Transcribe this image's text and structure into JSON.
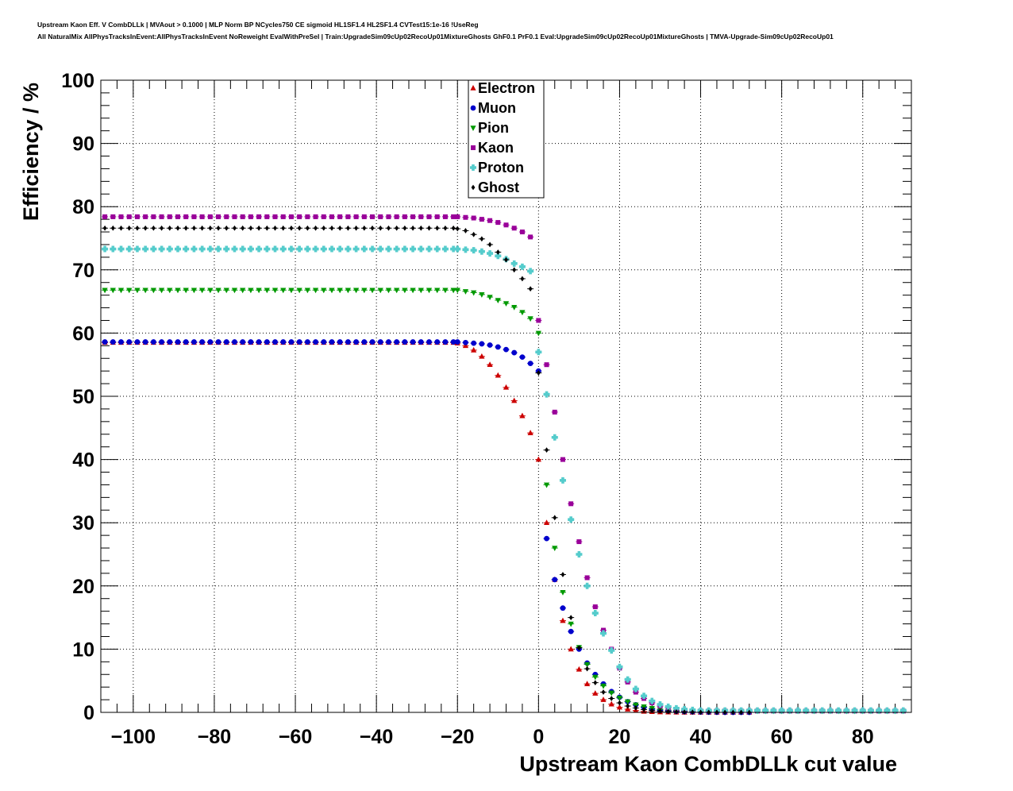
{
  "title_lines": [
    "Upstream Kaon Eff. V CombDLLk | MVAout > 0.1000 | MLP Norm BP NCycles750 CE sigmoid HL1SF1.4 HL2SF1.4 CVTest15:1e-16 !UseReg",
    "All NaturalMix AllPhysTracksInEvent:AllPhysTracksInEvent NoReweight EvalWithPreSel | Train:UpgradeSim09cUp02RecoUp01MixtureGhosts GhF0.1 PrF0.1 Eval:UpgradeSim09cUp02RecoUp01MixtureGhosts | TMVA-Upgrade-Sim09cUp02RecoUp01"
  ],
  "chart_data": {
    "type": "scatter",
    "title": "Upstream Kaon Eff. V CombDLLk",
    "xlabel": "Upstream Kaon CombDLLk cut value",
    "ylabel": "Efficiency / %",
    "xlim": [
      -108,
      92
    ],
    "ylim": [
      0,
      100
    ],
    "x_ticks": [
      -100,
      -80,
      -60,
      -40,
      -20,
      0,
      20,
      40,
      60,
      80
    ],
    "x_tick_labels": [
      "−100",
      "−80",
      "−60",
      "−40",
      "−20",
      "0",
      "20",
      "40",
      "60",
      "80"
    ],
    "y_ticks": [
      0,
      10,
      20,
      30,
      40,
      50,
      60,
      70,
      80,
      90,
      100
    ],
    "y_tick_labels": [
      "0",
      "10",
      "20",
      "30",
      "40",
      "50",
      "60",
      "70",
      "80",
      "90",
      "100"
    ],
    "grid": true,
    "legend_position": "top-center",
    "x_start": -107,
    "x_step": 2,
    "series": [
      {
        "name": "Electron",
        "color": "#cc0000",
        "marker": "triangle-up",
        "plateau": 58.5,
        "max_x": 52,
        "points": [
          [
            -20,
            58.4
          ],
          [
            -18,
            58.0
          ],
          [
            -16,
            57.3
          ],
          [
            -14,
            56.3
          ],
          [
            -12,
            55.0
          ],
          [
            -10,
            53.3
          ],
          [
            -8,
            51.4
          ],
          [
            -6,
            49.3
          ],
          [
            -4,
            46.9
          ],
          [
            -2,
            44.2
          ],
          [
            0,
            40.0
          ],
          [
            2,
            30.0
          ],
          [
            4,
            21.0
          ],
          [
            6,
            14.5
          ],
          [
            8,
            10.0
          ],
          [
            10,
            6.8
          ],
          [
            12,
            4.5
          ],
          [
            14,
            3.0
          ],
          [
            16,
            2.0
          ],
          [
            18,
            1.3
          ],
          [
            20,
            0.8
          ],
          [
            22,
            0.5
          ],
          [
            24,
            0.3
          ],
          [
            26,
            0.15
          ],
          [
            28,
            0.1
          ],
          [
            30,
            0.05
          ],
          [
            32,
            0.03
          ],
          [
            34,
            0.02
          ],
          [
            36,
            0.01
          ],
          [
            38,
            0.0
          ]
        ]
      },
      {
        "name": "Muon",
        "color": "#0000cc",
        "marker": "circle",
        "plateau": 58.6,
        "max_x": 52,
        "points": [
          [
            -20,
            58.6
          ],
          [
            -18,
            58.5
          ],
          [
            -16,
            58.4
          ],
          [
            -14,
            58.3
          ],
          [
            -12,
            58.1
          ],
          [
            -10,
            57.8
          ],
          [
            -8,
            57.4
          ],
          [
            -6,
            56.9
          ],
          [
            -4,
            56.2
          ],
          [
            -2,
            55.2
          ],
          [
            0,
            54.0
          ],
          [
            2,
            27.5
          ],
          [
            4,
            21.0
          ],
          [
            6,
            16.5
          ],
          [
            8,
            12.8
          ],
          [
            10,
            10.0
          ],
          [
            12,
            7.8
          ],
          [
            14,
            6.0
          ],
          [
            16,
            4.5
          ],
          [
            18,
            3.3
          ],
          [
            20,
            2.4
          ],
          [
            22,
            1.7
          ],
          [
            24,
            1.2
          ],
          [
            26,
            0.8
          ],
          [
            28,
            0.5
          ],
          [
            30,
            0.35
          ],
          [
            32,
            0.25
          ],
          [
            34,
            0.18
          ],
          [
            36,
            0.12
          ],
          [
            38,
            0.08
          ],
          [
            40,
            0.05
          ],
          [
            42,
            0.03
          ],
          [
            44,
            0.02
          ],
          [
            46,
            0.01
          ],
          [
            48,
            0.01
          ],
          [
            50,
            0.01
          ]
        ]
      },
      {
        "name": "Pion",
        "color": "#009900",
        "marker": "triangle-down",
        "plateau": 66.8,
        "max_x": 90,
        "points": [
          [
            -20,
            66.8
          ],
          [
            -18,
            66.6
          ],
          [
            -16,
            66.4
          ],
          [
            -14,
            66.1
          ],
          [
            -12,
            65.7
          ],
          [
            -10,
            65.2
          ],
          [
            -8,
            64.7
          ],
          [
            -6,
            64.1
          ],
          [
            -4,
            63.3
          ],
          [
            -2,
            62.3
          ],
          [
            0,
            60.0
          ],
          [
            2,
            36.0
          ],
          [
            4,
            26.0
          ],
          [
            6,
            19.0
          ],
          [
            8,
            14.0
          ],
          [
            10,
            10.3
          ],
          [
            12,
            7.6
          ],
          [
            14,
            5.6
          ],
          [
            16,
            4.2
          ],
          [
            18,
            3.1
          ],
          [
            20,
            2.3
          ],
          [
            22,
            1.7
          ],
          [
            24,
            1.2
          ],
          [
            26,
            0.9
          ],
          [
            28,
            0.65
          ],
          [
            30,
            0.5
          ],
          [
            32,
            0.38
          ],
          [
            34,
            0.3
          ],
          [
            36,
            0.25
          ],
          [
            38,
            0.22
          ],
          [
            40,
            0.2
          ]
        ]
      },
      {
        "name": "Kaon",
        "color": "#990099",
        "marker": "square",
        "plateau": 78.4,
        "max_x": 90,
        "points": [
          [
            -20,
            78.4
          ],
          [
            -18,
            78.3
          ],
          [
            -16,
            78.2
          ],
          [
            -14,
            78.0
          ],
          [
            -12,
            77.8
          ],
          [
            -10,
            77.5
          ],
          [
            -8,
            77.1
          ],
          [
            -6,
            76.6
          ],
          [
            -4,
            76.0
          ],
          [
            -2,
            75.2
          ],
          [
            0,
            62.0
          ],
          [
            2,
            55.0
          ],
          [
            4,
            47.5
          ],
          [
            6,
            40.0
          ],
          [
            8,
            33.0
          ],
          [
            10,
            27.0
          ],
          [
            12,
            21.3
          ],
          [
            14,
            16.7
          ],
          [
            16,
            13.0
          ],
          [
            18,
            10.0
          ],
          [
            20,
            7.0
          ],
          [
            22,
            4.8
          ],
          [
            24,
            3.2
          ],
          [
            26,
            2.2
          ],
          [
            28,
            1.5
          ],
          [
            30,
            1.0
          ],
          [
            32,
            0.7
          ],
          [
            34,
            0.5
          ],
          [
            36,
            0.35
          ],
          [
            38,
            0.25
          ],
          [
            40,
            0.2
          ]
        ]
      },
      {
        "name": "Proton",
        "color": "#55cccc",
        "marker": "cross",
        "plateau": 73.3,
        "max_x": 90,
        "points": [
          [
            -20,
            73.3
          ],
          [
            -18,
            73.2
          ],
          [
            -16,
            73.1
          ],
          [
            -14,
            72.9
          ],
          [
            -12,
            72.6
          ],
          [
            -10,
            72.2
          ],
          [
            -8,
            71.7
          ],
          [
            -6,
            71.0
          ],
          [
            -4,
            70.5
          ],
          [
            -2,
            69.8
          ],
          [
            0,
            57.0
          ],
          [
            2,
            50.3
          ],
          [
            4,
            43.5
          ],
          [
            6,
            36.7
          ],
          [
            8,
            30.5
          ],
          [
            10,
            25.0
          ],
          [
            12,
            20.0
          ],
          [
            14,
            15.7
          ],
          [
            16,
            12.5
          ],
          [
            18,
            9.8
          ],
          [
            20,
            7.2
          ],
          [
            22,
            5.2
          ],
          [
            24,
            3.7
          ],
          [
            26,
            2.6
          ],
          [
            28,
            1.8
          ],
          [
            30,
            1.25
          ],
          [
            32,
            0.9
          ],
          [
            34,
            0.65
          ],
          [
            36,
            0.5
          ],
          [
            38,
            0.4
          ],
          [
            40,
            0.3
          ]
        ]
      },
      {
        "name": "Ghost",
        "color": "#000000",
        "marker": "diamond",
        "plateau": 76.6,
        "max_x": 52,
        "points": [
          [
            -20,
            76.5
          ],
          [
            -18,
            76.2
          ],
          [
            -16,
            75.6
          ],
          [
            -14,
            74.9
          ],
          [
            -12,
            74.0
          ],
          [
            -10,
            72.8
          ],
          [
            -8,
            71.6
          ],
          [
            -6,
            70.0
          ],
          [
            -4,
            68.6
          ],
          [
            -2,
            67.0
          ],
          [
            0,
            53.7
          ],
          [
            2,
            41.5
          ],
          [
            4,
            30.8
          ],
          [
            6,
            21.8
          ],
          [
            8,
            15.0
          ],
          [
            10,
            10.2
          ],
          [
            12,
            6.9
          ],
          [
            14,
            4.7
          ],
          [
            16,
            3.2
          ],
          [
            18,
            2.2
          ],
          [
            20,
            1.5
          ],
          [
            22,
            1.0
          ],
          [
            24,
            0.7
          ],
          [
            26,
            0.45
          ],
          [
            28,
            0.3
          ],
          [
            30,
            0.2
          ],
          [
            32,
            0.13
          ],
          [
            34,
            0.08
          ],
          [
            36,
            0.05
          ],
          [
            38,
            0.03
          ],
          [
            40,
            0.02
          ],
          [
            42,
            0.01
          ],
          [
            44,
            0.01
          ]
        ]
      }
    ]
  }
}
